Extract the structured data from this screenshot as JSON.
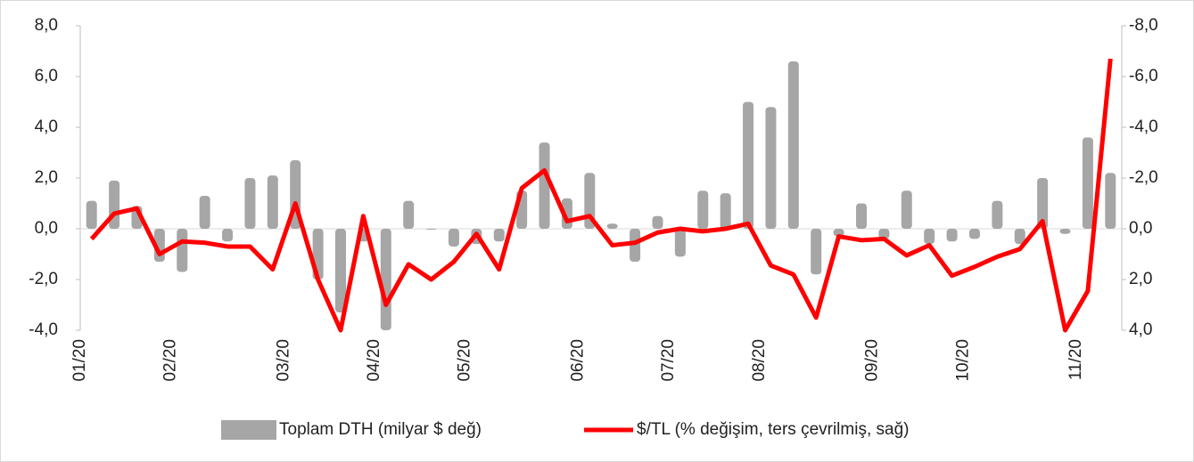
{
  "chart_data": {
    "type": "bar_line",
    "categories": [
      "01/20",
      null,
      null,
      null,
      "02/20",
      null,
      null,
      null,
      null,
      "03/20",
      null,
      null,
      null,
      "04/20",
      null,
      null,
      null,
      "05/20",
      null,
      null,
      null,
      null,
      "06/20",
      null,
      null,
      null,
      "07/20",
      null,
      null,
      null,
      "08/20",
      null,
      null,
      null,
      null,
      "09/20",
      null,
      null,
      null,
      "10/20",
      null,
      null,
      null,
      null,
      "11/20",
      null
    ],
    "series": [
      {
        "name": "Toplam DTH (milyar $ değ)",
        "type": "bar",
        "color": "#a6a6a6",
        "values": [
          1.1,
          1.9,
          0.9,
          -1.3,
          -1.7,
          1.3,
          -0.5,
          2.0,
          2.1,
          2.7,
          -2.0,
          -3.3,
          -0.5,
          -4.0,
          1.1,
          0,
          -0.7,
          -0.6,
          -0.5,
          1.5,
          3.4,
          1.2,
          2.2,
          0.2,
          -1.3,
          0.5,
          -1.1,
          1.5,
          1.4,
          5.0,
          4.8,
          6.6,
          -1.8,
          -0.3,
          1.0,
          -0.4,
          1.5,
          -0.6,
          -0.5,
          -0.4,
          1.1,
          -0.6,
          2.0,
          -0.2,
          3.6,
          2.2
        ]
      },
      {
        "name": "$/TL (% değişim, ters çevrilmiş, sağ)",
        "type": "line",
        "axis": "y2",
        "color": "#ff0000",
        "values": [
          0.4,
          -0.6,
          -0.8,
          1.0,
          0.5,
          0.55,
          0.7,
          0.7,
          1.6,
          -1.0,
          2.0,
          4.0,
          -0.5,
          3.0,
          1.4,
          2.0,
          1.3,
          0.2,
          1.6,
          -1.6,
          -2.3,
          -0.3,
          -0.5,
          0.65,
          0.55,
          0.15,
          0,
          0.1,
          0,
          -0.2,
          1.45,
          1.8,
          3.5,
          0.3,
          0.45,
          0.4,
          1.05,
          0.65,
          1.85,
          1.5,
          1.1,
          0.8,
          -0.3,
          4.0,
          2.45,
          -6.7
        ]
      }
    ],
    "ylim": [
      -4,
      8
    ],
    "yticks": [
      {
        "value": -4,
        "label": "-4,0"
      },
      {
        "value": -2,
        "label": "-2,0"
      },
      {
        "value": 0,
        "label": "0,0"
      },
      {
        "value": 2,
        "label": "2,0"
      },
      {
        "value": 4,
        "label": "4,0"
      },
      {
        "value": 6,
        "label": "6,0"
      },
      {
        "value": 8,
        "label": "8,0"
      }
    ],
    "y2lim": [
      4,
      -8
    ],
    "y2ticks": [
      {
        "value": 4,
        "label": "4,0"
      },
      {
        "value": 2,
        "label": "2,0"
      },
      {
        "value": 0,
        "label": "0,0"
      },
      {
        "value": -2,
        "label": "-2,0"
      },
      {
        "value": -4,
        "label": "-4,0"
      },
      {
        "value": -6,
        "label": "-6,0"
      },
      {
        "value": -8,
        "label": "-8,0"
      }
    ],
    "legend": "bottom"
  }
}
